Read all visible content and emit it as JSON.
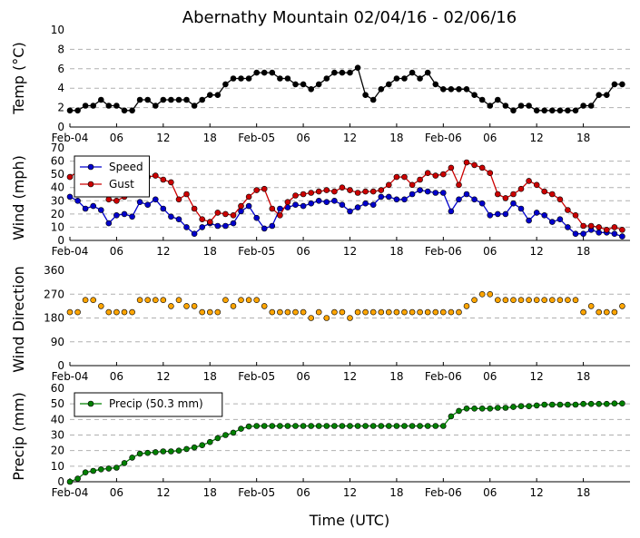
{
  "title": "Abernathy Mountain 02/04/16 - 02/06/16",
  "xlabel": "Time (UTC)",
  "x_ticks": [
    "Feb-04",
    "06",
    "12",
    "18",
    "Feb-05",
    "06",
    "12",
    "18",
    "Feb-06",
    "06",
    "12",
    "18"
  ],
  "colors": {
    "temp": "#000000",
    "speed": "#0000cc",
    "gust": "#cc0000",
    "direction": "#ffa500",
    "precip": "#008000"
  },
  "chart_data": [
    {
      "type": "line",
      "name": "temp",
      "ylabel": "Temp (°C)",
      "ylim": [
        0,
        10
      ],
      "yticks": [
        0,
        2,
        4,
        6,
        8,
        10
      ],
      "x_start": "Feb-04 00",
      "x_step_hours": 1,
      "series": [
        {
          "name": "",
          "values": [
            1.7,
            1.7,
            2.2,
            2.2,
            2.8,
            2.2,
            2.2,
            1.7,
            1.7,
            2.8,
            2.8,
            2.2,
            2.8,
            2.8,
            2.8,
            2.8,
            2.2,
            2.8,
            3.3,
            3.3,
            4.4,
            5.0,
            5.0,
            5.0,
            5.6,
            5.6,
            5.6,
            5.0,
            5.0,
            4.4,
            4.4,
            3.9,
            4.4,
            5.0,
            5.6,
            5.6,
            5.6,
            6.1,
            3.3,
            2.8,
            3.9,
            4.4,
            5.0,
            5.0,
            5.6,
            5.0,
            5.6,
            4.4,
            3.9,
            3.9,
            3.9,
            3.9,
            3.3,
            2.8,
            2.2,
            2.8,
            2.2,
            1.7,
            2.2,
            2.2,
            1.7,
            1.7,
            1.7,
            1.7,
            1.7,
            1.7,
            2.2,
            2.2,
            3.3,
            3.3,
            4.4,
            4.4
          ]
        }
      ]
    },
    {
      "type": "line",
      "name": "wind",
      "ylabel": "Wind (mph)",
      "ylim": [
        0,
        70
      ],
      "yticks": [
        0,
        10,
        20,
        30,
        40,
        50,
        60,
        70
      ],
      "legend": "top-left",
      "x_start": "Feb-04 00",
      "x_step_hours": 1,
      "series": [
        {
          "name": "Speed",
          "values": [
            33,
            30,
            24,
            26,
            23,
            13,
            19,
            20,
            18,
            29,
            27,
            31,
            24,
            18,
            16,
            10,
            5,
            10,
            13,
            11,
            11,
            13,
            22,
            26,
            17,
            9,
            11,
            24,
            25,
            27,
            26,
            28,
            30,
            29,
            30,
            27,
            22,
            25,
            28,
            27,
            33,
            33,
            31,
            31,
            35,
            38,
            37,
            36,
            36,
            22,
            31,
            35,
            31,
            28,
            19,
            20,
            20,
            28,
            24,
            15,
            21,
            19,
            14,
            16,
            10,
            5,
            5,
            8,
            6,
            6,
            5,
            3
          ]
        },
        {
          "name": "Gust",
          "values": [
            48,
            52,
            49,
            46,
            44,
            31,
            30,
            33,
            50,
            48,
            48,
            49,
            46,
            44,
            31,
            35,
            24,
            16,
            14,
            21,
            20,
            19,
            26,
            33,
            38,
            39,
            24,
            19,
            29,
            34,
            35,
            36,
            37,
            38,
            37,
            40,
            38,
            36,
            37,
            37,
            38,
            42,
            48,
            48,
            42,
            46,
            51,
            49,
            50,
            55,
            42,
            59,
            57,
            55,
            51,
            35,
            32,
            35,
            39,
            45,
            42,
            37,
            35,
            31,
            23,
            19,
            11,
            11,
            10,
            8,
            10,
            8
          ]
        }
      ]
    },
    {
      "type": "scatter",
      "name": "direction",
      "ylabel": "Wind Direction",
      "ylim": [
        0,
        360
      ],
      "yticks": [
        0,
        90,
        180,
        270,
        360
      ],
      "x_start": "Feb-04 00",
      "x_step_hours": 1,
      "series": [
        {
          "name": "",
          "values": [
            202,
            202,
            248,
            248,
            225,
            202,
            202,
            202,
            202,
            248,
            248,
            248,
            248,
            225,
            248,
            225,
            225,
            202,
            202,
            202,
            248,
            225,
            248,
            248,
            248,
            225,
            202,
            202,
            202,
            202,
            202,
            180,
            202,
            180,
            202,
            202,
            180,
            202,
            202,
            202,
            202,
            202,
            202,
            202,
            202,
            202,
            202,
            202,
            202,
            202,
            202,
            225,
            248,
            270,
            270,
            248,
            248,
            248,
            248,
            248,
            248,
            248,
            248,
            248,
            248,
            248,
            202,
            225,
            202,
            202,
            202,
            225
          ]
        }
      ]
    },
    {
      "type": "line",
      "name": "precip",
      "ylabel": "Precip (mm)",
      "ylim": [
        0,
        60
      ],
      "yticks": [
        0,
        10,
        20,
        30,
        40,
        50,
        60
      ],
      "legend": "top-left",
      "x_start": "Feb-04 00",
      "x_step_hours": 1,
      "series": [
        {
          "name": "Precip (50.3 mm)",
          "values": [
            0,
            2,
            6,
            7,
            8,
            8.5,
            9,
            12,
            15.5,
            18,
            18.5,
            19,
            19.5,
            19.5,
            20,
            21,
            22,
            23.5,
            25.5,
            28,
            30,
            31.5,
            34,
            35.5,
            35.8,
            35.8,
            35.8,
            35.8,
            35.8,
            35.8,
            35.8,
            35.8,
            35.8,
            35.8,
            35.8,
            35.8,
            35.8,
            35.8,
            35.8,
            35.8,
            35.8,
            35.8,
            35.8,
            35.8,
            35.8,
            35.8,
            35.8,
            35.8,
            35.8,
            42,
            45.5,
            47,
            47,
            47,
            47,
            47.5,
            47.5,
            48,
            48.5,
            48.5,
            49,
            49.5,
            49.5,
            49.5,
            49.5,
            49.5,
            50,
            50,
            50,
            50,
            50.3,
            50.3
          ]
        }
      ]
    }
  ]
}
